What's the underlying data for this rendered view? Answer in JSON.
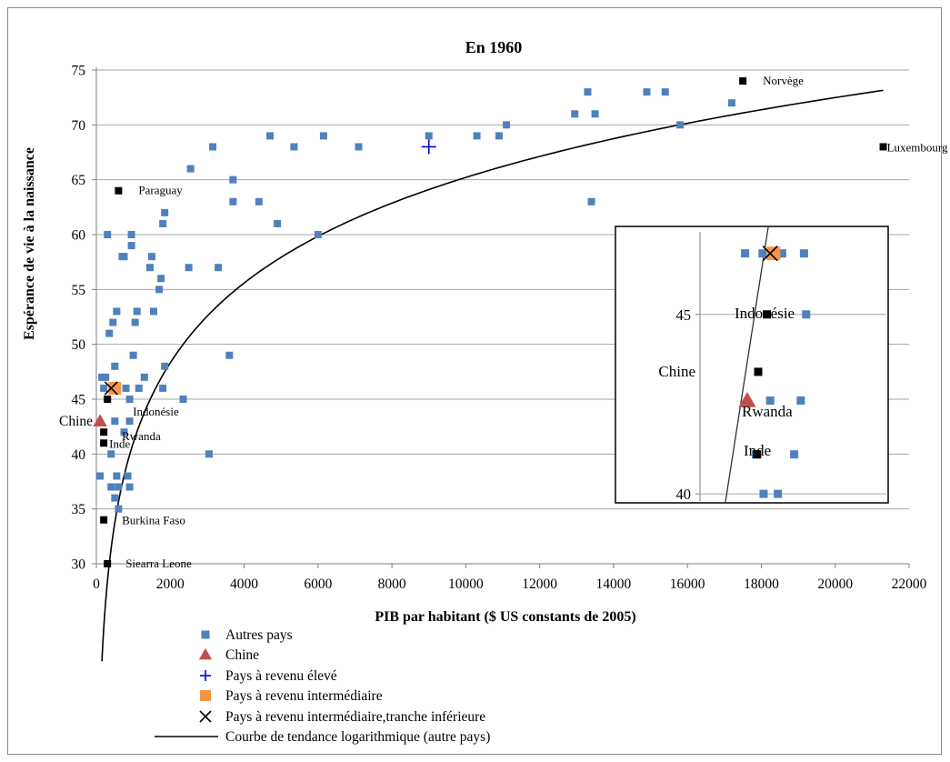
{
  "chart_data": {
    "type": "scatter",
    "title": "En 1960",
    "xlabel": "PIB par habitant ($ US constants de 2005)",
    "ylabel": "Espérance de vie à la naissance",
    "xlim": [
      0,
      22000
    ],
    "ylim": [
      30,
      75
    ],
    "xticks": [
      0,
      2000,
      4000,
      6000,
      8000,
      10000,
      12000,
      14000,
      16000,
      18000,
      20000,
      22000
    ],
    "yticks": [
      30,
      35,
      40,
      45,
      50,
      55,
      60,
      65,
      70,
      75
    ],
    "grid": "horizontal",
    "legend_position": "bottom",
    "colors": {
      "autres": "#4f81bd",
      "chine": "#c0504d",
      "eleve": "#0000cc",
      "intermediaire": "#f79646",
      "inferieure": "#000000",
      "labeled": "#000000",
      "trend": "#000000",
      "grid": "#a6a6a6"
    },
    "legend": [
      {
        "key": "autres",
        "label": "Autres pays",
        "marker": "square"
      },
      {
        "key": "chine",
        "label": "Chine",
        "marker": "triangle"
      },
      {
        "key": "eleve",
        "label": "Pays à revenu élevé",
        "marker": "plus"
      },
      {
        "key": "intermediaire",
        "label": "Pays à revenu intermédiaire",
        "marker": "square-large"
      },
      {
        "key": "inferieure",
        "label": "Pays à revenu intermédiaire,tranche inférieure",
        "marker": "x"
      },
      {
        "key": "trend",
        "label": "Courbe de tendance logarithmique (autre pays)",
        "marker": "line"
      }
    ],
    "series": [
      {
        "name": "Autres pays",
        "key": "autres",
        "points": [
          [
            100,
            38
          ],
          [
            150,
            47
          ],
          [
            200,
            46
          ],
          [
            250,
            47
          ],
          [
            300,
            60
          ],
          [
            350,
            51
          ],
          [
            400,
            40
          ],
          [
            400,
            37
          ],
          [
            450,
            52
          ],
          [
            500,
            36
          ],
          [
            500,
            43
          ],
          [
            500,
            48
          ],
          [
            550,
            53
          ],
          [
            550,
            38
          ],
          [
            600,
            35
          ],
          [
            600,
            37
          ],
          [
            700,
            58
          ],
          [
            750,
            58
          ],
          [
            750,
            42
          ],
          [
            800,
            46
          ],
          [
            850,
            38
          ],
          [
            900,
            37
          ],
          [
            950,
            60
          ],
          [
            950,
            59
          ],
          [
            1000,
            49
          ],
          [
            900,
            43
          ],
          [
            900,
            45
          ],
          [
            1050,
            52
          ],
          [
            1100,
            53
          ],
          [
            1150,
            46
          ],
          [
            1300,
            47
          ],
          [
            1450,
            57
          ],
          [
            1500,
            58
          ],
          [
            1550,
            53
          ],
          [
            1700,
            55
          ],
          [
            1750,
            56
          ],
          [
            1800,
            61
          ],
          [
            1850,
            62
          ],
          [
            1850,
            48
          ],
          [
            1800,
            46
          ],
          [
            2350,
            45
          ],
          [
            2500,
            57
          ],
          [
            2550,
            66
          ],
          [
            3050,
            40
          ],
          [
            3150,
            68
          ],
          [
            3300,
            57
          ],
          [
            3600,
            49
          ],
          [
            3700,
            65
          ],
          [
            3700,
            63
          ],
          [
            4400,
            63
          ],
          [
            4700,
            69
          ],
          [
            4900,
            61
          ],
          [
            5350,
            68
          ],
          [
            6000,
            60
          ],
          [
            6150,
            69
          ],
          [
            7100,
            68
          ],
          [
            9000,
            69
          ],
          [
            10300,
            69
          ],
          [
            10900,
            69
          ],
          [
            11100,
            70
          ],
          [
            12950,
            71
          ],
          [
            13300,
            73
          ],
          [
            13400,
            63
          ],
          [
            13500,
            71
          ],
          [
            14900,
            73
          ],
          [
            15400,
            73
          ],
          [
            15800,
            70
          ],
          [
            17200,
            72
          ]
        ]
      },
      {
        "name": "Chine",
        "key": "chine",
        "points": [
          [
            100,
            43
          ]
        ]
      },
      {
        "name": "Pays à revenu élevé",
        "key": "eleve",
        "points": [
          [
            9000,
            68
          ]
        ]
      },
      {
        "name": "Pays à revenu intermédiaire",
        "key": "intermediaire",
        "points": [
          [
            500,
            46
          ]
        ]
      },
      {
        "name": "Pays à revenu intermédiaire,tranche inférieure",
        "key": "inferieure",
        "points": [
          [
            400,
            46
          ]
        ]
      }
    ],
    "labeled_points": [
      {
        "label": "Norvège",
        "x": 17500,
        "y": 74
      },
      {
        "label": "Luxembourg",
        "x": 21300,
        "y": 68
      },
      {
        "label": "Paraguay",
        "x": 600,
        "y": 64
      },
      {
        "label": "Indonésie",
        "x": 300,
        "y": 45
      },
      {
        "label": "Rwanda",
        "x": 200,
        "y": 42
      },
      {
        "label": "Inde",
        "x": 200,
        "y": 41
      },
      {
        "label": "Burkina Faso",
        "x": 200,
        "y": 34
      },
      {
        "label": "Siearra Leone",
        "x": 300,
        "y": 30
      }
    ],
    "trendline": {
      "name": "Courbe de tendance logarithmique (autre pays)",
      "type": "log",
      "a": 10.5,
      "b": -31.5,
      "x_range": [
        150,
        21300
      ]
    },
    "inset": {
      "ylim": [
        39.8,
        47.3
      ],
      "yticks": [
        40,
        45
      ],
      "labels": [
        "Indonésie",
        "Chine",
        "Rwanda",
        "Inde"
      ],
      "points_autres": [
        [
          -4.2,
          46.7
        ],
        [
          -2.6,
          46.7
        ],
        [
          -0.8,
          46.7
        ],
        [
          1.2,
          46.7
        ],
        [
          1.4,
          45
        ],
        [
          -1.9,
          42.6
        ],
        [
          0.9,
          42.6
        ],
        [
          -3.2,
          41.1
        ],
        [
          0.3,
          41.1
        ],
        [
          -2.5,
          40
        ],
        [
          -1.2,
          40
        ]
      ],
      "points_labeled": [
        [
          -2.2,
          45
        ],
        [
          -3.0,
          43.4
        ],
        [
          -3.1,
          41.1
        ]
      ],
      "point_chine": [
        -4.0,
        42.6
      ],
      "point_intermediaire": [
        -1.6,
        46.7
      ],
      "point_inferieure": [
        -1.9,
        46.7
      ]
    }
  }
}
